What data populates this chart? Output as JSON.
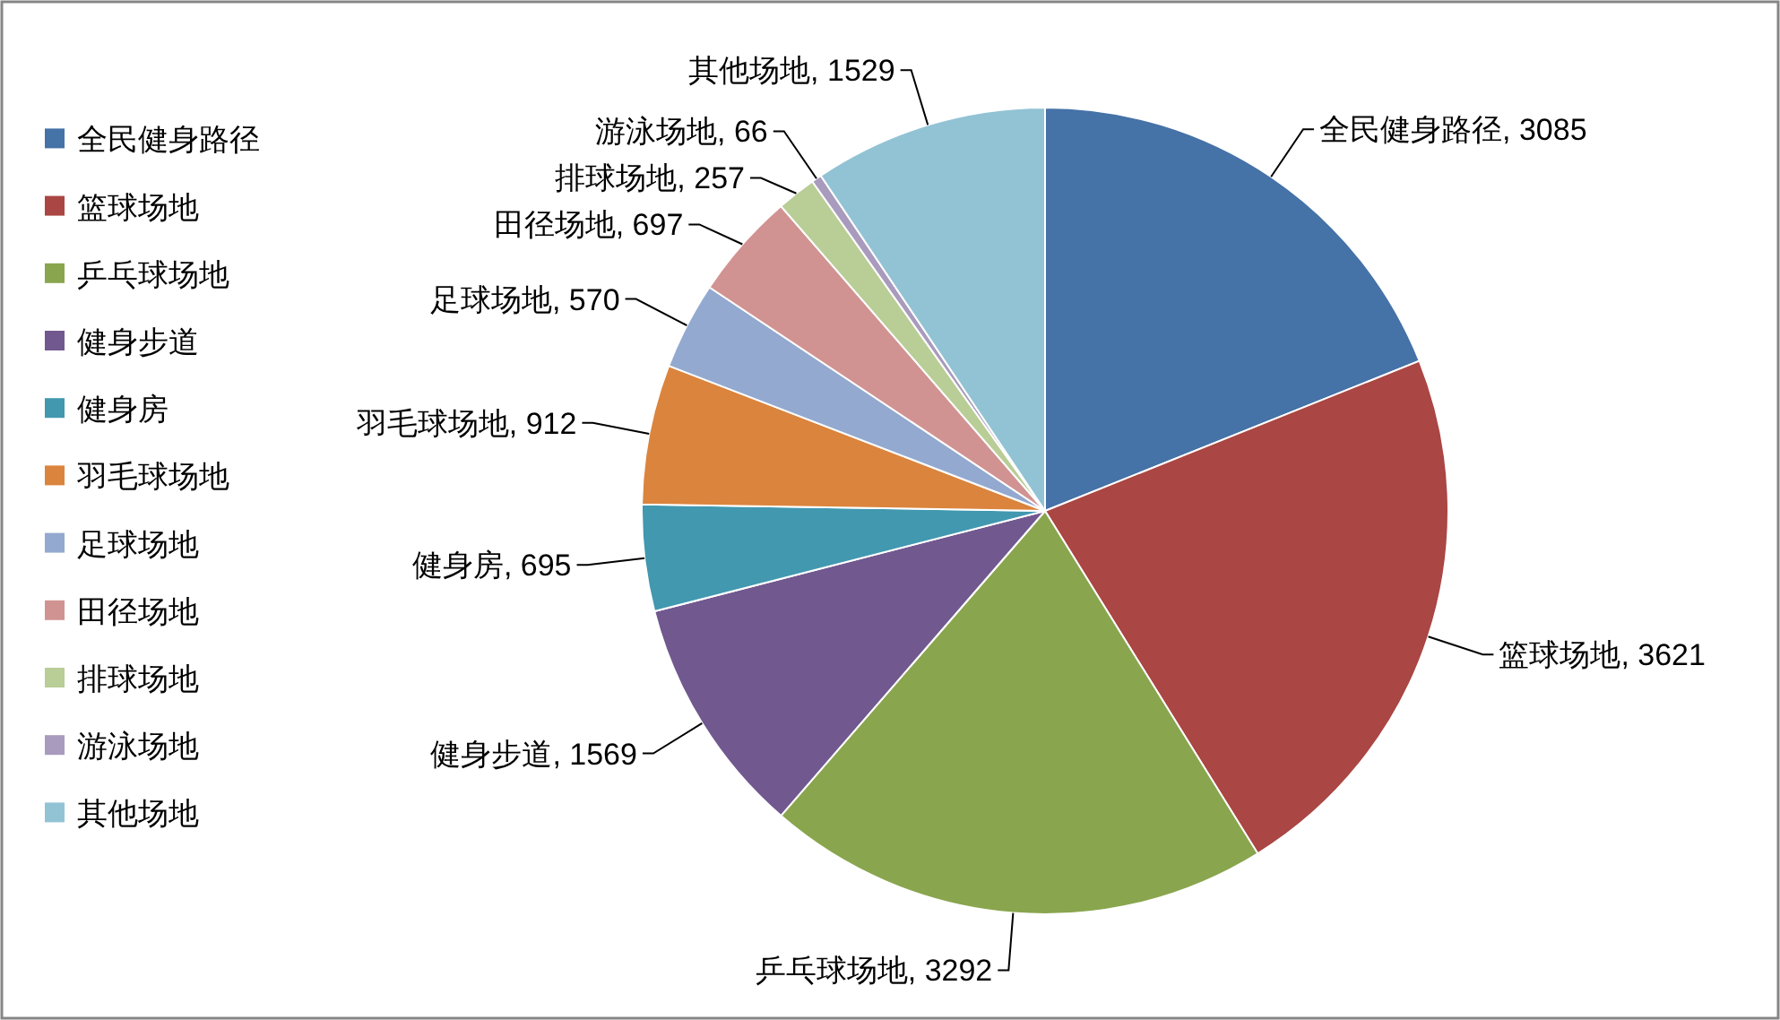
{
  "chart_data": {
    "type": "pie",
    "categories": [
      "全民健身路径",
      "篮球场地",
      "乒乓球场地",
      "健身步道",
      "健身房",
      "羽毛球场地",
      "足球场地",
      "田径场地",
      "排球场地",
      "游泳场地",
      "其他场地"
    ],
    "values": [
      3085,
      3621,
      3292,
      1569,
      695,
      912,
      570,
      697,
      257,
      66,
      1529
    ],
    "colors": [
      "#4572a7",
      "#aa4643",
      "#89a54e",
      "#71588f",
      "#4198af",
      "#db843d",
      "#93a9cf",
      "#d19392",
      "#b9cd96",
      "#a99bbd",
      "#92c3d4"
    ],
    "value_labels": [
      "全民健身路径, 3085",
      "篮球场地, 3621",
      "乒乓球场地, 3292",
      "健身步道, 1569",
      "健身房, 695",
      "羽毛球场地, 912",
      "足球场地, 570",
      "田径场地, 697",
      "排球场地, 257",
      "游泳场地, 66",
      "其他场地, 1529"
    ],
    "legend": "left"
  }
}
